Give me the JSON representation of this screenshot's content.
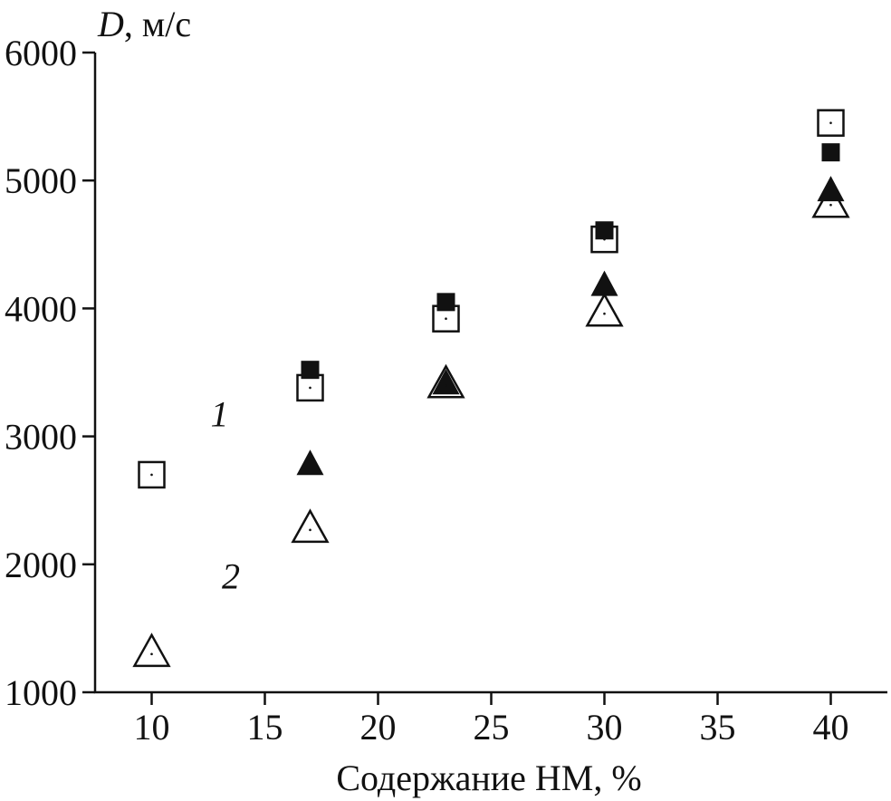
{
  "chart_data": {
    "type": "scatter",
    "title": "",
    "ylabel_symbol": "D",
    "ylabel_unit": ", м/с",
    "xlabel": "Содержание НМ, %",
    "xlim": [
      7.5,
      42.5
    ],
    "ylim": [
      1000,
      6000
    ],
    "x_ticks": [
      10,
      15,
      20,
      25,
      30,
      35,
      40
    ],
    "y_ticks": [
      1000,
      2000,
      3000,
      4000,
      5000,
      6000
    ],
    "grid": false,
    "series": [
      {
        "marker": "square-open",
        "points": [
          [
            10,
            2700
          ],
          [
            17,
            3380
          ],
          [
            23,
            3920
          ],
          [
            30,
            4540
          ],
          [
            40,
            5450
          ]
        ]
      },
      {
        "marker": "square-filled",
        "points": [
          [
            17,
            3520
          ],
          [
            23,
            4050
          ],
          [
            30,
            4610
          ],
          [
            40,
            5220
          ]
        ]
      },
      {
        "marker": "triangle-filled",
        "points": [
          [
            17,
            2790
          ],
          [
            23,
            3420
          ],
          [
            30,
            4190
          ],
          [
            40,
            4930
          ]
        ]
      },
      {
        "marker": "triangle-open",
        "points": [
          [
            10,
            1320
          ],
          [
            17,
            2290
          ],
          [
            23,
            3420
          ],
          [
            30,
            3980
          ],
          [
            40,
            4830
          ]
        ]
      }
    ],
    "annotations": [
      {
        "text": "1",
        "x": 13,
        "y": 3080
      },
      {
        "text": "2",
        "x": 13.5,
        "y": 1810
      }
    ]
  }
}
